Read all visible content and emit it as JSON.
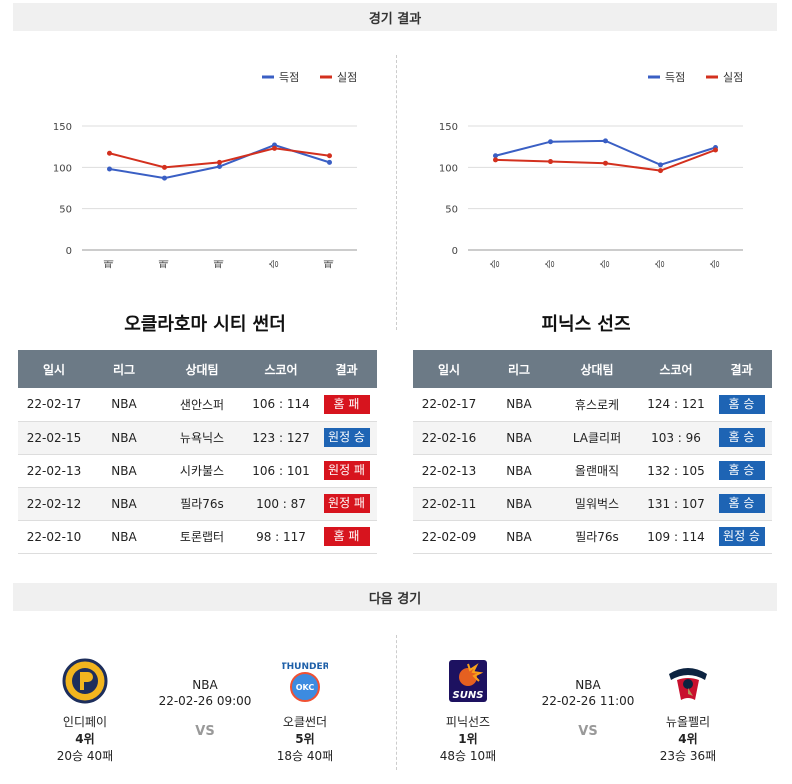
{
  "results_header": "경기 결과",
  "next_header": "다음 경기",
  "legend": {
    "score": "득점",
    "conceded": "실점"
  },
  "colors": {
    "score": "#3a5fc4",
    "conceded": "#d3301e",
    "win": "#1e64b4",
    "loss": "#d7141e"
  },
  "table_headers": [
    "일시",
    "리그",
    "상대팀",
    "스코어",
    "결과"
  ],
  "left": {
    "team": "오클라호마 시티 썬더",
    "chart_data": {
      "type": "line",
      "categories": [
        "패",
        "패",
        "패",
        "승",
        "패"
      ],
      "series": [
        {
          "name": "득점",
          "values": [
            98,
            87,
            101,
            127,
            106
          ]
        },
        {
          "name": "실점",
          "values": [
            117,
            100,
            106,
            123,
            114
          ]
        }
      ],
      "yticks": [
        0,
        50,
        100,
        150
      ],
      "ylim": [
        0,
        150
      ],
      "legend": "top-right"
    },
    "games": [
      {
        "date": "22-02-17",
        "league": "NBA",
        "opp": "샌안스퍼",
        "score": "106 : 114",
        "result": "홈 패",
        "win": false
      },
      {
        "date": "22-02-15",
        "league": "NBA",
        "opp": "뉴욕닉스",
        "score": "123 : 127",
        "result": "원정 승",
        "win": true
      },
      {
        "date": "22-02-13",
        "league": "NBA",
        "opp": "시카불스",
        "score": "106 : 101",
        "result": "원정 패",
        "win": false
      },
      {
        "date": "22-02-12",
        "league": "NBA",
        "opp": "필라76s",
        "score": "100 : 87",
        "result": "원정 패",
        "win": false
      },
      {
        "date": "22-02-10",
        "league": "NBA",
        "opp": "토론랩터",
        "score": "98 : 117",
        "result": "홈 패",
        "win": false
      }
    ]
  },
  "right": {
    "team": "피닉스 선즈",
    "chart_data": {
      "type": "line",
      "categories": [
        "승",
        "승",
        "승",
        "승",
        "승"
      ],
      "series": [
        {
          "name": "득점",
          "values": [
            114,
            131,
            132,
            103,
            124
          ]
        },
        {
          "name": "실점",
          "values": [
            109,
            107,
            105,
            96,
            121
          ]
        }
      ],
      "yticks": [
        0,
        50,
        100,
        150
      ],
      "ylim": [
        0,
        150
      ],
      "legend": "top-right"
    },
    "games": [
      {
        "date": "22-02-17",
        "league": "NBA",
        "opp": "휴스로케",
        "score": "124 : 121",
        "result": "홈 승",
        "win": true
      },
      {
        "date": "22-02-16",
        "league": "NBA",
        "opp": "LA클리퍼",
        "score": "103 : 96",
        "result": "홈 승",
        "win": true
      },
      {
        "date": "22-02-13",
        "league": "NBA",
        "opp": "올랜매직",
        "score": "132 : 105",
        "result": "홈 승",
        "win": true
      },
      {
        "date": "22-02-11",
        "league": "NBA",
        "opp": "밀워벅스",
        "score": "131 : 107",
        "result": "홈 승",
        "win": true
      },
      {
        "date": "22-02-09",
        "league": "NBA",
        "opp": "필라76s",
        "score": "109 : 114",
        "result": "원정 승",
        "win": true
      }
    ]
  },
  "next_games": [
    {
      "league": "NBA",
      "datetime": "22-02-26 09:00",
      "vs": "VS",
      "home": {
        "name": "인디페이",
        "rank": "4위",
        "record": "20승 40패",
        "logo": "pacers-logo"
      },
      "away": {
        "name": "오클썬더",
        "rank": "5위",
        "record": "18승 40패",
        "logo": "thunder-logo"
      }
    },
    {
      "league": "NBA",
      "datetime": "22-02-26 11:00",
      "vs": "VS",
      "home": {
        "name": "피닉선즈",
        "rank": "1위",
        "record": "48승 10패",
        "logo": "suns-logo"
      },
      "away": {
        "name": "뉴올펠리",
        "rank": "4위",
        "record": "23승 36패",
        "logo": "pelicans-logo"
      }
    }
  ]
}
